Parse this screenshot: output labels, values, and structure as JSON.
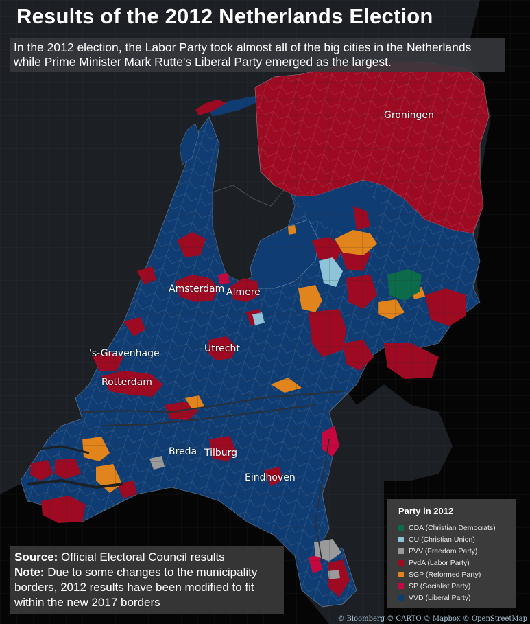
{
  "title": "Results of the 2012 Netherlands Election",
  "subtitle": "In the 2012 election, the Labor Party took almost all of the big cities in the Netherlands while Prime Minister Mark Rutte's Liberal Party emerged as the largest.",
  "cities": [
    {
      "name": "Groningen"
    },
    {
      "name": "Amsterdam"
    },
    {
      "name": "Almere"
    },
    {
      "name": "'s-Gravenhage"
    },
    {
      "name": "Utrecht"
    },
    {
      "name": "Rotterdam"
    },
    {
      "name": "Breda"
    },
    {
      "name": "Tilburg"
    },
    {
      "name": "Eindhoven"
    }
  ],
  "legend": {
    "title": "Party in 2012",
    "items": [
      {
        "label": "CDA (Christian Democrats)",
        "color": "#0b6b4a"
      },
      {
        "label": "CU (Christian Union)",
        "color": "#8fc4d8"
      },
      {
        "label": "PVV (Freedom Party)",
        "color": "#9a9a9a"
      },
      {
        "label": "PvdA (Labor Party)",
        "color": "#9e0a22"
      },
      {
        "label": "SGP (Reformed Party)",
        "color": "#e0841b"
      },
      {
        "label": "SP (Socialist Party)",
        "color": "#c7083e"
      },
      {
        "label": "VVD (Liberal Party)",
        "color": "#0f3d73"
      }
    ]
  },
  "source": {
    "source_label": "Source:",
    "source_text": "Official Electoral Council results",
    "note_label": "Note:",
    "note_text": "Due to some changes to the municipality borders, 2012 results have been modified to fit within the new 2017 borders"
  },
  "attribution": "© Bloomberg © CARTO © Mapbox © OpenStreetMap",
  "colors": {
    "land": "#000000",
    "water": "#1c1f24",
    "vvd": "#0f3d73",
    "pvda": "#9e0a22",
    "sp": "#c7083e",
    "sgp": "#e0841b",
    "cu": "#8fc4d8",
    "cda": "#0b6b4a",
    "pvv": "#9a9a9a"
  }
}
